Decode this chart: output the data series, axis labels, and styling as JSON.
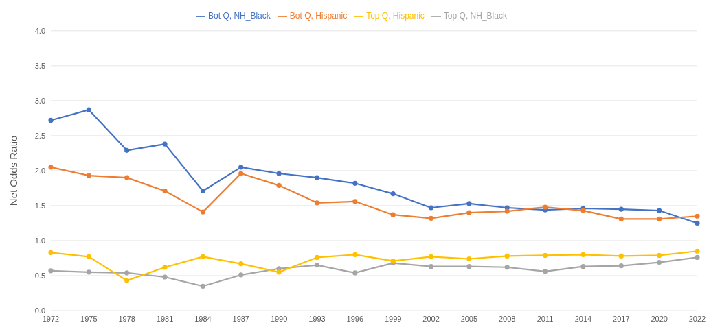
{
  "chart_data": {
    "type": "line",
    "ylabel": "Net Odds Ratio",
    "categories": [
      "1972",
      "1975",
      "1978",
      "1981",
      "1984",
      "1987",
      "1990",
      "1993",
      "1996",
      "1999",
      "2002",
      "2005",
      "2008",
      "2011",
      "2014",
      "2017",
      "2020",
      "2022"
    ],
    "series": [
      {
        "name": "Bot Q,  NH_Black",
        "color": "#4472c4",
        "values": [
          2.72,
          2.87,
          2.29,
          2.38,
          1.71,
          2.05,
          1.96,
          1.9,
          1.82,
          1.67,
          1.47,
          1.53,
          1.47,
          1.44,
          1.46,
          1.45,
          1.43,
          1.25
        ]
      },
      {
        "name": "Bot Q, Hispanic",
        "color": "#ed7d31",
        "values": [
          2.05,
          1.93,
          1.9,
          1.71,
          1.41,
          1.96,
          1.79,
          1.54,
          1.56,
          1.37,
          1.32,
          1.4,
          1.42,
          1.48,
          1.43,
          1.31,
          1.31,
          1.35
        ]
      },
      {
        "name": "Top Q, NH_Black",
        "color": "#a5a5a5",
        "values": [
          0.57,
          0.55,
          0.54,
          0.48,
          0.35,
          0.51,
          0.6,
          0.65,
          0.54,
          0.68,
          0.63,
          0.63,
          0.62,
          0.56,
          0.63,
          0.64,
          0.69,
          0.76
        ]
      },
      {
        "name": "Top Q, Hispanic",
        "color": "#ffc000",
        "values": [
          0.83,
          0.77,
          0.43,
          0.62,
          0.77,
          0.67,
          0.55,
          0.76,
          0.8,
          0.71,
          0.77,
          0.74,
          0.78,
          0.79,
          0.8,
          0.78,
          0.79,
          0.85
        ]
      }
    ],
    "ylim": [
      0,
      4
    ],
    "yticks": [
      {
        "value": 0,
        "label": "0.0"
      },
      {
        "value": 0.5,
        "label": "0.5"
      },
      {
        "value": 1,
        "label": "1.0"
      },
      {
        "value": 1.5,
        "label": "1.5"
      },
      {
        "value": 2,
        "label": "2.0"
      },
      {
        "value": 2.5,
        "label": "2.5"
      },
      {
        "value": 3,
        "label": "3.0"
      },
      {
        "value": 3.5,
        "label": "3.5"
      },
      {
        "value": 4,
        "label": "4.0"
      }
    ],
    "grid": "y",
    "legend": "top",
    "marker": "circle",
    "line_style": "solid"
  }
}
